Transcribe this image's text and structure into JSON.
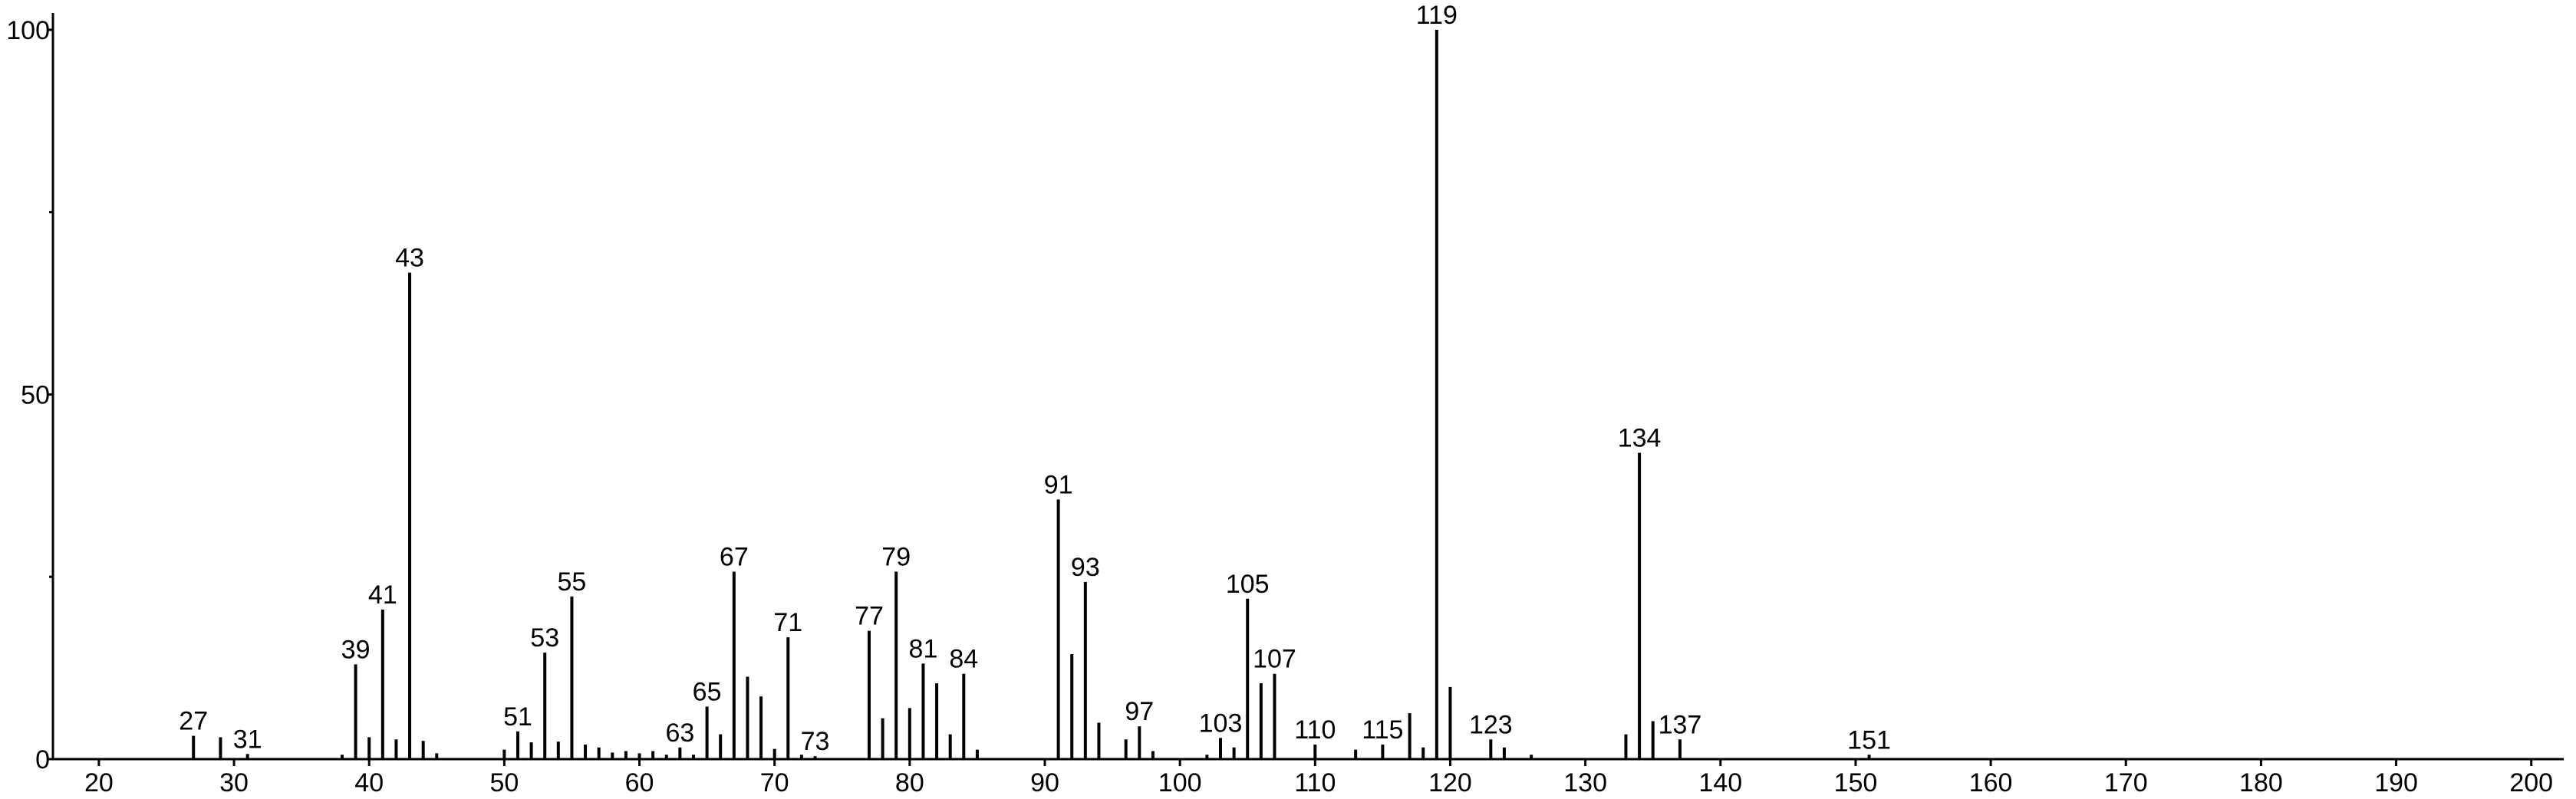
{
  "chart_data": {
    "type": "stick",
    "x": [
      27,
      29,
      31,
      38,
      39,
      40,
      41,
      42,
      43,
      44,
      45,
      50,
      51,
      52,
      53,
      54,
      55,
      56,
      57,
      58,
      59,
      60,
      61,
      62,
      63,
      64,
      65,
      66,
      67,
      68,
      69,
      70,
      71,
      72,
      73,
      77,
      78,
      79,
      80,
      81,
      82,
      83,
      84,
      85,
      91,
      92,
      93,
      94,
      96,
      97,
      98,
      102,
      103,
      104,
      105,
      106,
      107,
      110,
      113,
      115,
      117,
      118,
      119,
      120,
      123,
      124,
      126,
      133,
      134,
      135,
      137,
      151
    ],
    "values": [
      3.2,
      3,
      0.7,
      0.6,
      13,
      3,
      20.5,
      2.7,
      66.7,
      2.5,
      0.8,
      1.3,
      3.8,
      2.3,
      14.6,
      2.4,
      22.3,
      2,
      1.6,
      0.9,
      1.1,
      0.8,
      1.1,
      0.6,
      1.6,
      0.6,
      7.2,
      3.4,
      25.7,
      11.3,
      8.6,
      1.4,
      16.7,
      0.6,
      0.4,
      17.6,
      5.6,
      25.7,
      7,
      13.1,
      10.4,
      3.4,
      11.7,
      1.3,
      35.6,
      14.4,
      24.3,
      5,
      2.7,
      4.5,
      1.1,
      0.6,
      2.9,
      1.6,
      22,
      10.4,
      11.7,
      2,
      1.3,
      2,
      6.3,
      1.6,
      100,
      9.9,
      2.7,
      1.6,
      0.6,
      3.4,
      42,
      5.2,
      2.7,
      0.6
    ],
    "point_labels": [
      27,
      null,
      31,
      null,
      39,
      null,
      41,
      null,
      43,
      null,
      null,
      null,
      51,
      null,
      53,
      null,
      55,
      null,
      null,
      null,
      null,
      null,
      null,
      null,
      63,
      null,
      65,
      null,
      67,
      null,
      null,
      null,
      71,
      null,
      73,
      77,
      null,
      79,
      null,
      81,
      null,
      null,
      84,
      null,
      91,
      null,
      93,
      null,
      null,
      97,
      null,
      null,
      103,
      null,
      105,
      null,
      107,
      110,
      null,
      115,
      null,
      null,
      119,
      null,
      123,
      null,
      null,
      null,
      134,
      null,
      137,
      151
    ],
    "color": "#000000",
    "xlim": [
      16.6,
      202.4
    ],
    "xticks": [
      20,
      30,
      40,
      50,
      60,
      70,
      80,
      90,
      100,
      110,
      120,
      130,
      140,
      150,
      160,
      170,
      180,
      190,
      200
    ],
    "ylim": [
      0,
      102.3
    ],
    "yticks": [
      0,
      50,
      100
    ],
    "yminor_ticks": [
      25,
      75
    ]
  }
}
